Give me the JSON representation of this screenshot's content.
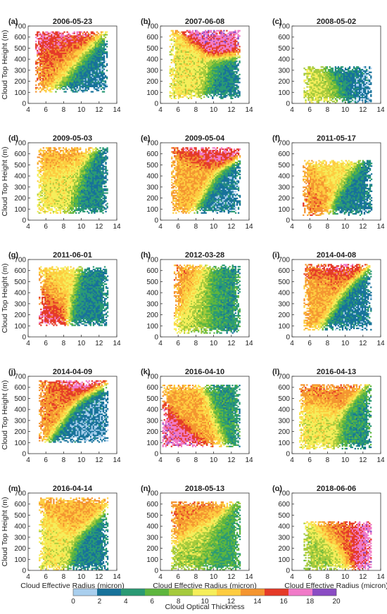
{
  "figure": {
    "ylabel": "Cloud Top Height (m)",
    "xlabel": "Cloud Effective Radius (micron)",
    "colorbar_label": "Cloud Optical Thickness"
  },
  "colorbar": {
    "ticks": [
      "0",
      "2",
      "4",
      "6",
      "8",
      "10",
      "12",
      "14",
      "16",
      "18",
      "20"
    ],
    "colors": [
      "#a9cfee",
      "#17729a",
      "#2a9a74",
      "#5eb63e",
      "#a5ca3c",
      "#f5ee5a",
      "#fdcc40",
      "#f49530",
      "#e53a28",
      "#f07ac8",
      "#8a4cc4"
    ]
  },
  "chart_data": {
    "type": "heatmap",
    "xlim": [
      4,
      14
    ],
    "ylim": [
      0,
      700
    ],
    "x_ticks": [
      "4",
      "6",
      "8",
      "10",
      "12",
      "14"
    ],
    "y_ticks": [
      "0",
      "100",
      "200",
      "300",
      "400",
      "500",
      "600",
      "700"
    ],
    "value": "Cloud Optical Thickness",
    "value_range": [
      0,
      20
    ],
    "panels": [
      {
        "id": "(a)",
        "date": "2006-05-23",
        "x_extent": [
          4.8,
          12.9
        ],
        "y_extent": [
          100,
          650
        ],
        "blobs": [
          {
            "x": 8.5,
            "y": 430,
            "v": 15
          },
          {
            "x": 8.0,
            "y": 560,
            "v": 18
          },
          {
            "x": 10.5,
            "y": 300,
            "v": 3
          }
        ]
      },
      {
        "id": "(b)",
        "date": "2007-06-08",
        "x_extent": [
          5.0,
          12.9
        ],
        "y_extent": [
          40,
          660
        ],
        "blobs": [
          {
            "x": 8.0,
            "y": 300,
            "v": 11
          },
          {
            "x": 10.5,
            "y": 570,
            "v": 19
          },
          {
            "x": 11.0,
            "y": 250,
            "v": 4
          }
        ]
      },
      {
        "id": "(c)",
        "date": "2008-05-02",
        "x_extent": [
          5.3,
          12.9
        ],
        "y_extent": [
          0,
          330
        ],
        "blobs": [
          {
            "x": 10.0,
            "y": 220,
            "v": 4
          },
          {
            "x": 7.5,
            "y": 120,
            "v": 10
          },
          {
            "x": 12.0,
            "y": 180,
            "v": 2.5
          }
        ]
      },
      {
        "id": "(d)",
        "date": "2009-05-03",
        "x_extent": [
          5.0,
          12.9
        ],
        "y_extent": [
          60,
          650
        ],
        "blobs": [
          {
            "x": 8.0,
            "y": 380,
            "v": 11
          },
          {
            "x": 7.5,
            "y": 560,
            "v": 14
          },
          {
            "x": 11.5,
            "y": 300,
            "v": 4
          }
        ]
      },
      {
        "id": "(e)",
        "date": "2009-05-04",
        "x_extent": [
          5.2,
          12.9
        ],
        "y_extent": [
          60,
          660
        ],
        "blobs": [
          {
            "x": 8.0,
            "y": 420,
            "v": 14
          },
          {
            "x": 9.0,
            "y": 620,
            "v": 18
          },
          {
            "x": 11.5,
            "y": 250,
            "v": 3
          }
        ]
      },
      {
        "id": "(f)",
        "date": "2011-05-17",
        "x_extent": [
          5.2,
          12.9
        ],
        "y_extent": [
          40,
          540
        ],
        "blobs": [
          {
            "x": 6.5,
            "y": 280,
            "v": 15
          },
          {
            "x": 8.0,
            "y": 380,
            "v": 12
          },
          {
            "x": 11.0,
            "y": 200,
            "v": 3.5
          }
        ]
      },
      {
        "id": "(g)",
        "date": "2011-06-01",
        "x_extent": [
          5.2,
          12.9
        ],
        "y_extent": [
          100,
          630
        ],
        "blobs": [
          {
            "x": 7.0,
            "y": 420,
            "v": 12
          },
          {
            "x": 6.0,
            "y": 320,
            "v": 18
          },
          {
            "x": 11.0,
            "y": 320,
            "v": 4
          }
        ]
      },
      {
        "id": "(h)",
        "date": "2012-03-28",
        "x_extent": [
          5.5,
          12.9
        ],
        "y_extent": [
          30,
          650
        ],
        "blobs": [
          {
            "x": 6.6,
            "y": 420,
            "v": 15
          },
          {
            "x": 8.2,
            "y": 350,
            "v": 9
          },
          {
            "x": 11.0,
            "y": 350,
            "v": 5
          }
        ]
      },
      {
        "id": "(i)",
        "date": "2014-04-08",
        "x_extent": [
          5.3,
          12.9
        ],
        "y_extent": [
          60,
          650
        ],
        "blobs": [
          {
            "x": 8.0,
            "y": 480,
            "v": 14
          },
          {
            "x": 8.5,
            "y": 600,
            "v": 18
          },
          {
            "x": 11.5,
            "y": 300,
            "v": 3
          }
        ]
      },
      {
        "id": "(j)",
        "date": "2014-04-09",
        "x_extent": [
          5.2,
          12.9
        ],
        "y_extent": [
          100,
          660
        ],
        "blobs": [
          {
            "x": 7.5,
            "y": 550,
            "v": 15
          },
          {
            "x": 9.0,
            "y": 650,
            "v": 19
          },
          {
            "x": 11.0,
            "y": 350,
            "v": 2.5
          }
        ]
      },
      {
        "id": "(k)",
        "date": "2016-04-10",
        "x_extent": [
          4.2,
          12.9
        ],
        "y_extent": [
          60,
          620
        ],
        "blobs": [
          {
            "x": 5.5,
            "y": 130,
            "v": 19
          },
          {
            "x": 8.0,
            "y": 350,
            "v": 14
          },
          {
            "x": 11.5,
            "y": 450,
            "v": 5
          }
        ]
      },
      {
        "id": "(l)",
        "date": "2016-04-13",
        "x_extent": [
          4.8,
          12.9
        ],
        "y_extent": [
          40,
          620
        ],
        "blobs": [
          {
            "x": 7.5,
            "y": 300,
            "v": 11
          },
          {
            "x": 8.0,
            "y": 500,
            "v": 15
          },
          {
            "x": 11.5,
            "y": 250,
            "v": 5
          }
        ]
      },
      {
        "id": "(m)",
        "date": "2016-04-14",
        "x_extent": [
          5.2,
          12.9
        ],
        "y_extent": [
          0,
          650
        ],
        "blobs": [
          {
            "x": 8.5,
            "y": 480,
            "v": 14
          },
          {
            "x": 7.0,
            "y": 300,
            "v": 11
          },
          {
            "x": 11.5,
            "y": 200,
            "v": 4
          }
        ]
      },
      {
        "id": "(n)",
        "date": "2018-05-13",
        "x_extent": [
          5.2,
          12.9
        ],
        "y_extent": [
          0,
          620
        ],
        "blobs": [
          {
            "x": 6.8,
            "y": 430,
            "v": 15
          },
          {
            "x": 8.0,
            "y": 250,
            "v": 9
          },
          {
            "x": 11.0,
            "y": 150,
            "v": 6
          }
        ]
      },
      {
        "id": "(o)",
        "date": "2018-06-06",
        "x_extent": [
          5.3,
          12.9
        ],
        "y_extent": [
          0,
          440
        ],
        "blobs": [
          {
            "x": 9.5,
            "y": 300,
            "v": 15
          },
          {
            "x": 11.5,
            "y": 300,
            "v": 19
          },
          {
            "x": 7.5,
            "y": 150,
            "v": 9
          }
        ]
      }
    ]
  }
}
